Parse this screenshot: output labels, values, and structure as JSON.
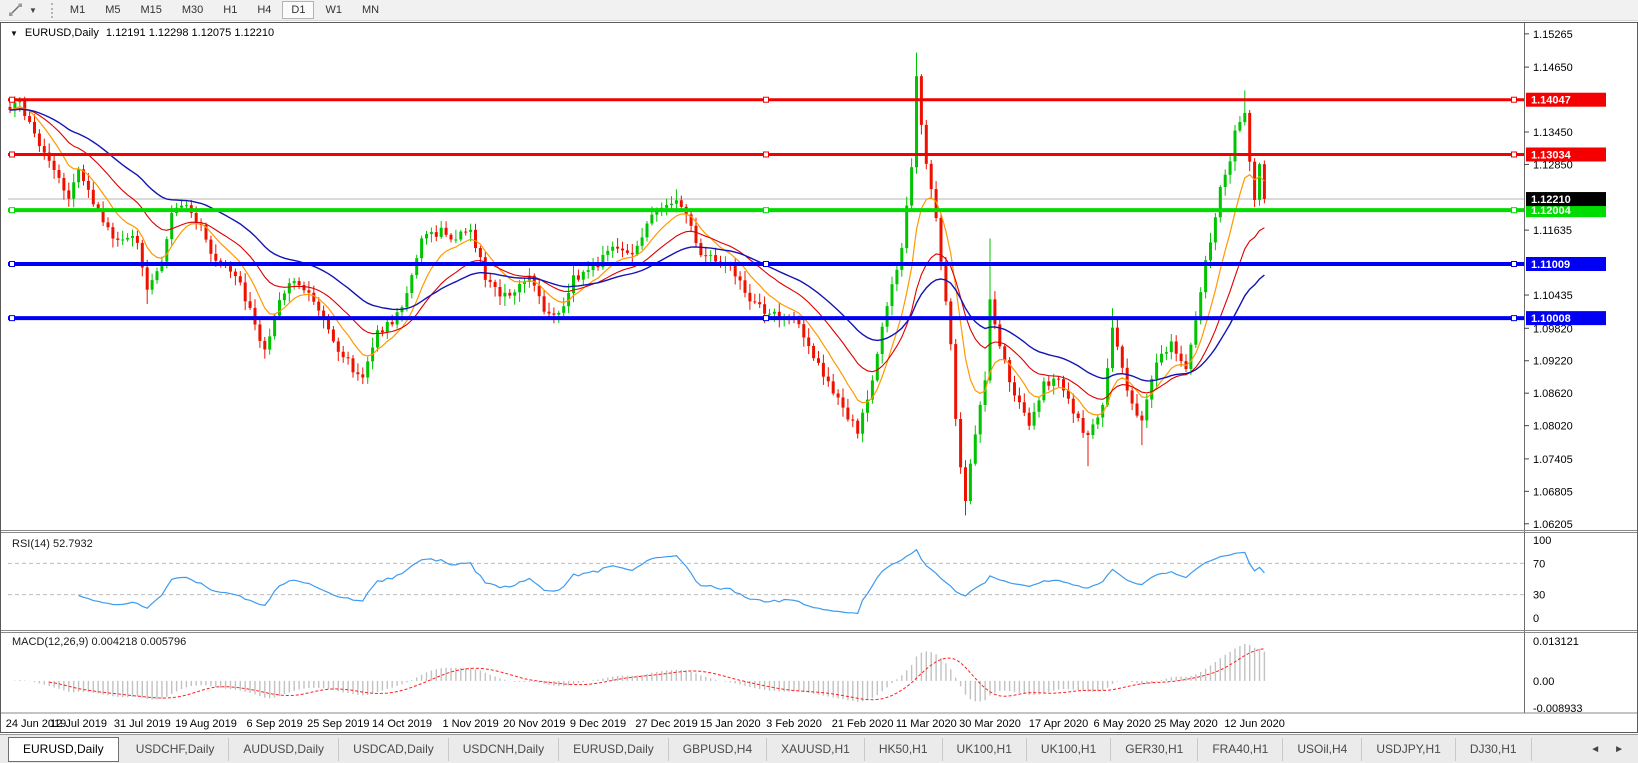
{
  "toolbar": {
    "timeframes": [
      "M1",
      "M5",
      "M15",
      "M30",
      "H1",
      "H4",
      "D1",
      "W1",
      "MN"
    ],
    "active_timeframe": "D1"
  },
  "chart": {
    "title_symbol": "EURUSD,Daily",
    "ohlc_text": "1.12191 1.12298 1.12075 1.12210",
    "price_axis_ticks": [
      "1.15265",
      "1.14650",
      "1.13450",
      "1.12850",
      "1.11635",
      "1.10435",
      "1.09820",
      "1.09220",
      "1.08620",
      "1.08020",
      "1.07405",
      "1.06805",
      "1.06205"
    ],
    "horizontal_lines": [
      {
        "price": "1.14047",
        "value": 1.14047,
        "color": "#F40000",
        "width": 3,
        "type": "resistance"
      },
      {
        "price": "1.13034",
        "value": 1.13034,
        "color": "#F40000",
        "width": 3,
        "type": "resistance"
      },
      {
        "price": "1.12004",
        "value": 1.12004,
        "color": "#00DC00",
        "width": 4,
        "type": "support"
      },
      {
        "price": "1.11009",
        "value": 1.11009,
        "color": "#0000F4",
        "width": 4,
        "type": "support"
      },
      {
        "price": "1.10008",
        "value": 1.10008,
        "color": "#0000F4",
        "width": 4,
        "type": "support"
      }
    ],
    "current_price": {
      "price": "1.12210",
      "value": 1.1221
    },
    "colors": {
      "bull": "#00C400",
      "bear": "#EE1100",
      "ma_fast": "#FF9900",
      "ma_medium": "#DE0000",
      "ma_slow": "#1414B4",
      "rsi_line": "#3E9BEF",
      "macd_histogram": "#C2C2C2",
      "macd_signal": "#FF1F1F",
      "current_price_line": "#B4B4B4",
      "current_price_label_bg": "#000000",
      "level_dashed": "#BDBDBD"
    },
    "date_axis": {
      "labels": [
        "24 Jun 2019",
        "12 Jul 2019",
        "31 Jul 2019",
        "19 Aug 2019",
        "6 Sep 2019",
        "25 Sep 2019",
        "14 Oct 2019",
        "1 Nov 2019",
        "20 Nov 2019",
        "9 Dec 2019",
        "27 Dec 2019",
        "15 Jan 2020",
        "3 Feb 2020",
        "21 Feb 2020",
        "11 Mar 2020",
        "30 Mar 2020",
        "17 Apr 2020",
        "6 May 2020",
        "25 May 2020",
        "12 Jun 2020"
      ],
      "day_indices": [
        0,
        14,
        27,
        40,
        54,
        67,
        80,
        94,
        107,
        120,
        134,
        147,
        160,
        174,
        187,
        200,
        214,
        227,
        240,
        254
      ]
    }
  },
  "rsi": {
    "label": "RSI(14) 52.7932",
    "levels": [
      "100",
      "70",
      "30",
      "0"
    ]
  },
  "macd": {
    "label": "MACD(12,26,9) 0.004218 0.005796",
    "axis_labels": [
      "0.013121",
      "0.00",
      "-0.008933"
    ]
  },
  "tabs": {
    "items": [
      "EURUSD,Daily",
      "USDCHF,Daily",
      "AUDUSD,Daily",
      "USDCAD,Daily",
      "USDCNH,Daily",
      "EURUSD,Daily",
      "GBPUSD,H4",
      "XAUUSD,H1",
      "HK50,H1",
      "UK100,H1",
      "UK100,H1",
      "GER30,H1",
      "FRA40,H1",
      "USOil,H4",
      "USDJPY,H1",
      "DJ30,H1"
    ],
    "active_index": 0,
    "scroll_left": "◄",
    "scroll_right": "►"
  },
  "chart_data": {
    "type": "candlestick",
    "symbol": "EURUSD",
    "timeframe": "Daily",
    "open": 1.12191,
    "high": 1.12298,
    "low": 1.12075,
    "close": 1.1221,
    "current_price": 1.1221,
    "price_range": {
      "min": 1.0609,
      "max": 1.1541
    },
    "num_candles": 257,
    "support_resistance_levels": [
      1.14047,
      1.13034,
      1.12004,
      1.11009,
      1.10008
    ],
    "close_path_anchors": [
      [
        0,
        1.1392
      ],
      [
        2,
        1.14
      ],
      [
        4,
        1.1358
      ],
      [
        8,
        1.1285
      ],
      [
        12,
        1.1225
      ],
      [
        14,
        1.1272
      ],
      [
        17,
        1.1215
      ],
      [
        21,
        1.1152
      ],
      [
        26,
        1.1145
      ],
      [
        28,
        1.1048
      ],
      [
        31,
        1.1105
      ],
      [
        33,
        1.1198
      ],
      [
        36,
        1.1205
      ],
      [
        39,
        1.1172
      ],
      [
        42,
        1.1102
      ],
      [
        46,
        1.1085
      ],
      [
        50,
        1.0992
      ],
      [
        52,
        1.0938
      ],
      [
        55,
        1.1035
      ],
      [
        58,
        1.1072
      ],
      [
        61,
        1.1042
      ],
      [
        64,
        1.1002
      ],
      [
        67,
        1.0945
      ],
      [
        70,
        1.0908
      ],
      [
        72,
        1.0888
      ],
      [
        75,
        1.0975
      ],
      [
        78,
        1.0995
      ],
      [
        81,
        1.1042
      ],
      [
        84,
        1.1145
      ],
      [
        88,
        1.1162
      ],
      [
        91,
        1.1148
      ],
      [
        94,
        1.1165
      ],
      [
        97,
        1.1078
      ],
      [
        100,
        1.1038
      ],
      [
        103,
        1.1052
      ],
      [
        106,
        1.1082
      ],
      [
        109,
        1.1018
      ],
      [
        112,
        1.1008
      ],
      [
        115,
        1.1075
      ],
      [
        119,
        1.1092
      ],
      [
        123,
        1.1132
      ],
      [
        127,
        1.1118
      ],
      [
        131,
        1.1195
      ],
      [
        136,
        1.1222
      ],
      [
        139,
        1.1168
      ],
      [
        141,
        1.1118
      ],
      [
        144,
        1.1108
      ],
      [
        147,
        1.1098
      ],
      [
        151,
        1.1038
      ],
      [
        155,
        1.1008
      ],
      [
        160,
        1.1
      ],
      [
        163,
        1.0952
      ],
      [
        166,
        1.0898
      ],
      [
        169,
        1.0848
      ],
      [
        171,
        1.0818
      ],
      [
        173,
        1.079
      ],
      [
        176,
        1.088
      ],
      [
        179,
        1.103
      ],
      [
        182,
        1.113
      ],
      [
        184,
        1.128
      ],
      [
        185,
        1.1445
      ],
      [
        187,
        1.128
      ],
      [
        189,
        1.1185
      ],
      [
        190,
        1.1105
      ],
      [
        192,
        1.096
      ],
      [
        193,
        1.082
      ],
      [
        194,
        1.072
      ],
      [
        195,
        1.066
      ],
      [
        197,
        1.079
      ],
      [
        199,
        1.089
      ],
      [
        200,
        1.103
      ],
      [
        202,
        1.0955
      ],
      [
        205,
        1.0855
      ],
      [
        208,
        1.0808
      ],
      [
        211,
        1.0878
      ],
      [
        214,
        1.0888
      ],
      [
        217,
        1.0828
      ],
      [
        220,
        1.0778
      ],
      [
        223,
        1.0838
      ],
      [
        225,
        1.0982
      ],
      [
        227,
        1.0908
      ],
      [
        229,
        1.0838
      ],
      [
        231,
        1.0808
      ],
      [
        234,
        1.0922
      ],
      [
        237,
        1.0952
      ],
      [
        240,
        1.0902
      ],
      [
        242,
        1.1002
      ],
      [
        244,
        1.1102
      ],
      [
        245,
        1.1138
      ],
      [
        247,
        1.1238
      ],
      [
        249,
        1.1292
      ],
      [
        250,
        1.1342
      ],
      [
        252,
        1.1382
      ],
      [
        253,
        1.1292
      ],
      [
        254,
        1.1218
      ],
      [
        255,
        1.1292
      ],
      [
        256,
        1.1221
      ]
    ],
    "wick_extremes": [
      [
        28,
        "low",
        1.1027
      ],
      [
        52,
        "low",
        1.0926
      ],
      [
        72,
        "low",
        1.0879
      ],
      [
        136,
        "high",
        1.1239
      ],
      [
        173,
        "low",
        1.0778
      ],
      [
        185,
        "high",
        1.1492
      ],
      [
        195,
        "low",
        1.0636
      ],
      [
        200,
        "high",
        1.1148
      ],
      [
        220,
        "low",
        1.0727
      ],
      [
        225,
        "high",
        1.1019
      ],
      [
        231,
        "low",
        1.0766
      ],
      [
        252,
        "high",
        1.1422
      ]
    ],
    "moving_averages": [
      {
        "name": "fast",
        "period": 9,
        "color": "#FF9900",
        "width": 1.2
      },
      {
        "name": "medium",
        "period": 21,
        "color": "#DE0000",
        "width": 1.1
      },
      {
        "name": "slow",
        "period": 40,
        "color": "#1414B4",
        "width": 1.4
      }
    ],
    "rsi": {
      "period": 14,
      "current": 52.7932,
      "overbought": 70,
      "oversold": 30,
      "scale": [
        0,
        100
      ]
    },
    "macd": {
      "fast": 12,
      "slow": 26,
      "signal": 9,
      "macd_value": 0.004218,
      "signal_value": 0.005796,
      "scale_max": 0.013121,
      "scale_min": -0.008933
    }
  }
}
